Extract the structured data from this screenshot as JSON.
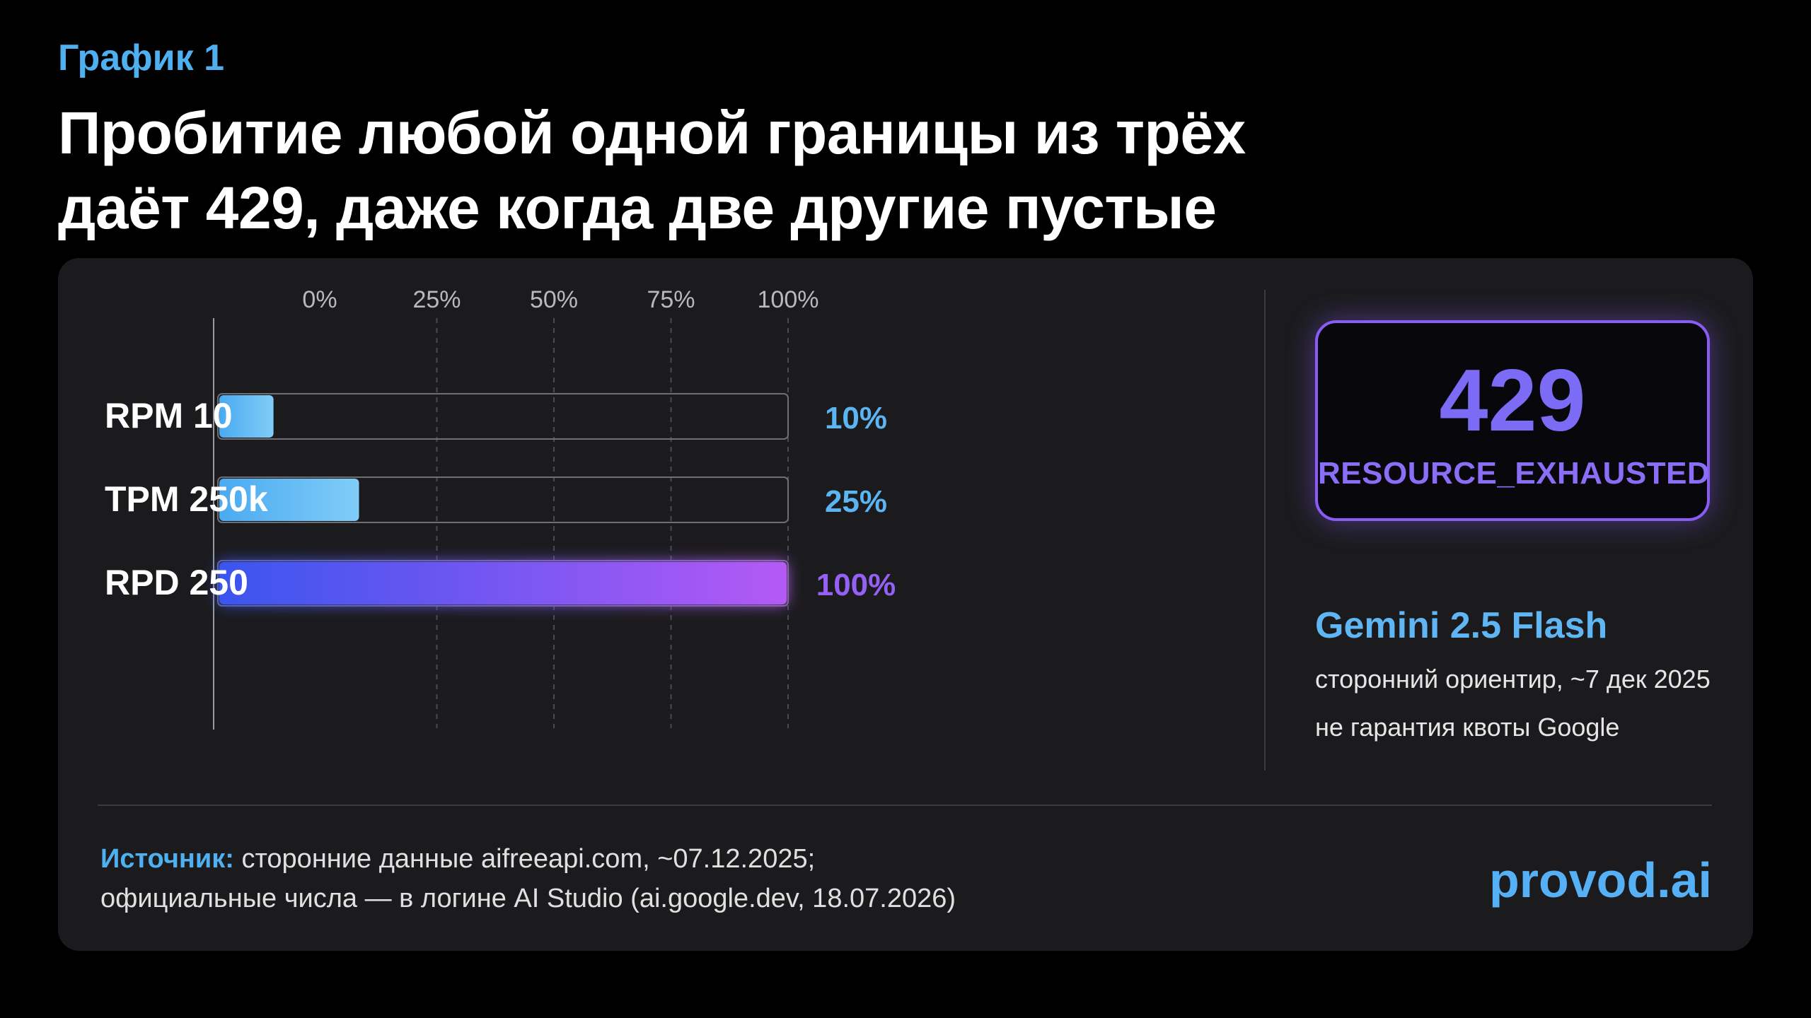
{
  "header": {
    "kicker": "График 1",
    "title_line1": "Пробитие любой одной границы из трёх",
    "title_line2": "даёт 429, даже когда две другие пустые"
  },
  "chart_data": {
    "type": "bar",
    "orientation": "horizontal",
    "categories": [
      "RPM 10",
      "TPM 250k",
      "RPD 250"
    ],
    "values": [
      10,
      25,
      100
    ],
    "value_labels": [
      "10%",
      "25%",
      "100%"
    ],
    "xlim": [
      0,
      100
    ],
    "ticks": [
      "0%",
      "25%",
      "50%",
      "75%",
      "100%"
    ],
    "tick_values": [
      0,
      25,
      50,
      75,
      100
    ],
    "grid": true,
    "colors": {
      "light_bar_start": "#4aaaf0",
      "light_bar_end": "#80cdf8",
      "full_bar_start": "#3a55ee",
      "full_bar_end": "#b45af5",
      "light_label": "#5bb5f2",
      "full_label": "#9560f5",
      "track_border": "#6e6e74",
      "grid": "#4a4a50",
      "axis": "#9a9aa0"
    }
  },
  "status": {
    "code": "429",
    "text": "RESOURCE_EXHAUSTED"
  },
  "model": {
    "name": "Gemini 2.5 Flash",
    "note1": "сторонний ориентир, ~7 дек 2025",
    "note2": "не гарантия квоты Google"
  },
  "footer": {
    "source_label": "Источник:",
    "source_line1": "сторонние данные aifreeapi.com, ~07.12.2025;",
    "source_line2": "официальные числа — в логине AI Studio (ai.google.dev, 18.07.2026)",
    "brand": "provod.ai"
  }
}
